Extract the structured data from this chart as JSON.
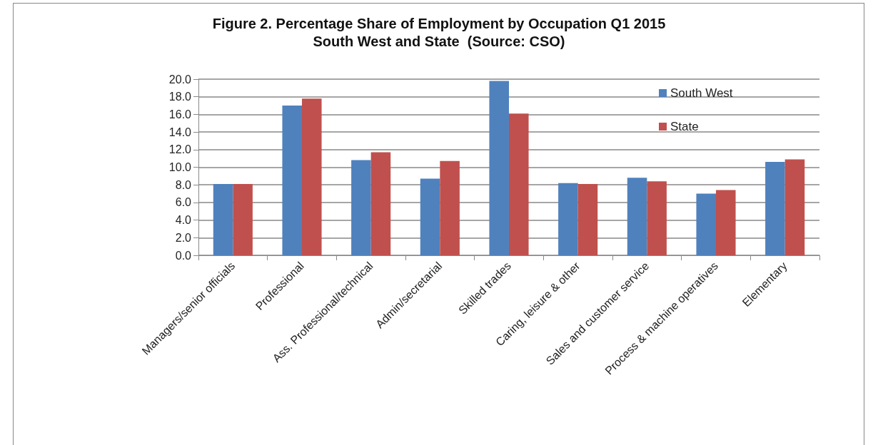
{
  "chart_data": {
    "type": "bar",
    "title": "Figure 2. Percentage Share of Employment by Occupation Q1 2015",
    "subtitle": "South West and State  (Source: CSO)",
    "categories": [
      "Managers/senior officials",
      "Professional",
      "Ass. Professional/technical",
      "Admin/secretarial",
      "Skilled trades",
      "Caring, leisure & other",
      "Sales and customer service",
      "Process & machine operatives",
      "Elementary"
    ],
    "series": [
      {
        "name": "South West",
        "color": "#4f81bd",
        "values": [
          8.1,
          17.0,
          10.8,
          8.7,
          19.8,
          8.2,
          8.8,
          7.0,
          10.6
        ]
      },
      {
        "name": "State",
        "color": "#c0504d",
        "values": [
          8.1,
          17.8,
          11.7,
          10.7,
          16.1,
          8.1,
          8.4,
          7.4,
          10.9
        ]
      }
    ],
    "ylim": [
      0,
      20
    ],
    "yticks": [
      {
        "value": 0,
        "label": "0.0"
      },
      {
        "value": 2,
        "label": "2.0"
      },
      {
        "value": 4,
        "label": "4.0"
      },
      {
        "value": 6,
        "label": "6.0"
      },
      {
        "value": 8,
        "label": "8.0"
      },
      {
        "value": 10,
        "label": "10.0"
      },
      {
        "value": 12,
        "label": "12.0"
      },
      {
        "value": 14,
        "label": "14.0"
      },
      {
        "value": 16,
        "label": "16.0"
      },
      {
        "value": 18,
        "label": "18.0"
      },
      {
        "value": 20,
        "label": "20.0"
      }
    ],
    "grid": "y",
    "legend": "top right"
  }
}
